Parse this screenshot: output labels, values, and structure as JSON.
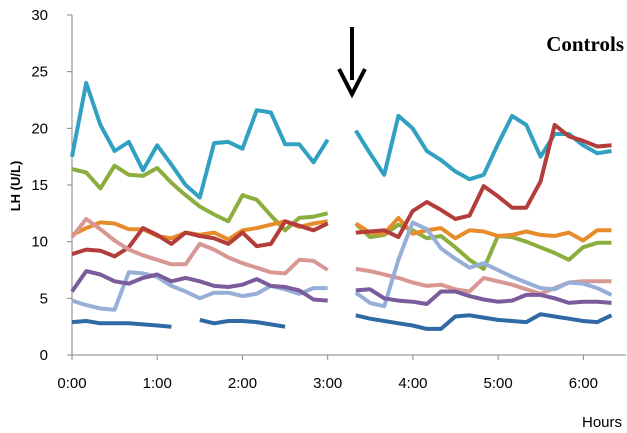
{
  "chart_data": {
    "type": "line",
    "xlabel": "Hours",
    "ylabel": "LH (U/L)",
    "annotation": "Controls",
    "marker_glyph": "down-arrow",
    "ylim": [
      0,
      30
    ],
    "yticks": [
      "0",
      "5",
      "10",
      "15",
      "20",
      "25",
      "30"
    ],
    "xlim": [
      0,
      6.5
    ],
    "xticks": [
      {
        "x": 0,
        "label": "0:00"
      },
      {
        "x": 1,
        "label": "1:00"
      },
      {
        "x": 2,
        "label": "2:00"
      },
      {
        "x": 3,
        "label": "3:00"
      },
      {
        "x": 4,
        "label": "4:00"
      },
      {
        "x": 5,
        "label": "5:00"
      },
      {
        "x": 6,
        "label": "6:00"
      }
    ],
    "arrow_at_x": 3.5,
    "grid": false,
    "series": [
      {
        "color": "#31a0c1",
        "segments": [
          {
            "x0": 0.0,
            "values": [
              17.5,
              24.0,
              20.3,
              18.0,
              18.8,
              16.3,
              18.5,
              16.8,
              15.0,
              13.9,
              18.7,
              18.8,
              18.2,
              21.6,
              21.4,
              18.6,
              18.6,
              17.0,
              19.0
            ]
          },
          {
            "x0": 3.33,
            "values": [
              19.8,
              17.8,
              15.9,
              21.1,
              20.0,
              18.0,
              17.2,
              16.2,
              15.5,
              15.9,
              18.6,
              21.1,
              20.3,
              17.5,
              19.5,
              19.5,
              18.5,
              17.8,
              18.0
            ]
          }
        ]
      },
      {
        "color": "#8cae3e",
        "segments": [
          {
            "x0": 0.0,
            "values": [
              16.4,
              16.1,
              14.7,
              16.7,
              15.9,
              15.8,
              16.5,
              15.2,
              14.1,
              13.1,
              12.4,
              11.8,
              14.1,
              13.7,
              12.3,
              11.0,
              12.1,
              12.2,
              12.5
            ]
          },
          {
            "x0": 3.33,
            "values": [
              11.6,
              10.4,
              10.6,
              11.5,
              11.0,
              10.3,
              10.5,
              9.5,
              8.4,
              7.6,
              10.5,
              10.4,
              10.0,
              9.5,
              9.0,
              8.4,
              9.5,
              9.9,
              9.9
            ]
          }
        ]
      },
      {
        "color": "#e78b2b",
        "segments": [
          {
            "x0": 0.0,
            "values": [
              10.6,
              11.2,
              11.7,
              11.6,
              11.1,
              11.1,
              10.5,
              10.3,
              10.8,
              10.6,
              10.8,
              10.2,
              11.0,
              11.2,
              11.5,
              11.8,
              11.3,
              11.6,
              11.8
            ]
          },
          {
            "x0": 3.33,
            "values": [
              11.6,
              10.8,
              10.7,
              12.1,
              10.7,
              11.0,
              11.2,
              10.3,
              11.0,
              10.9,
              10.5,
              10.6,
              10.9,
              10.6,
              10.5,
              10.8,
              10.1,
              11.0,
              11.0
            ]
          }
        ]
      },
      {
        "color": "#b23d3a",
        "segments": [
          {
            "x0": 0.0,
            "values": [
              8.9,
              9.3,
              9.2,
              8.7,
              9.5,
              11.2,
              10.6,
              9.8,
              10.8,
              10.5,
              10.3,
              9.8,
              10.8,
              9.6,
              9.8,
              11.8,
              11.4,
              11.0,
              11.6
            ]
          },
          {
            "x0": 3.33,
            "values": [
              10.8,
              10.9,
              11.0,
              10.4,
              12.7,
              13.5,
              12.8,
              12.0,
              12.3,
              14.9,
              14.0,
              13.0,
              13.0,
              15.3,
              20.3,
              19.3,
              18.9,
              18.4,
              18.5
            ]
          }
        ]
      },
      {
        "color": "#d99794",
        "segments": [
          {
            "x0": 0.0,
            "values": [
              10.4,
              12.0,
              11.1,
              10.1,
              9.3,
              8.8,
              8.4,
              8.0,
              8.0,
              9.8,
              9.3,
              8.6,
              8.1,
              7.7,
              7.3,
              7.2,
              8.4,
              8.3,
              7.5
            ]
          },
          {
            "x0": 3.33,
            "values": [
              7.6,
              7.4,
              7.1,
              6.8,
              6.4,
              6.1,
              6.2,
              5.8,
              5.6,
              6.8,
              6.5,
              6.2,
              5.8,
              5.4,
              5.9,
              6.4,
              6.5,
              6.5,
              6.5
            ]
          }
        ]
      },
      {
        "color": "#96aed8",
        "segments": [
          {
            "x0": 0.0,
            "values": [
              4.8,
              4.4,
              4.1,
              4.0,
              7.3,
              7.2,
              6.9,
              6.1,
              5.6,
              5.0,
              5.5,
              5.5,
              5.2,
              5.4,
              6.1,
              5.8,
              5.4,
              5.9,
              5.9
            ]
          },
          {
            "x0": 3.33,
            "values": [
              5.5,
              4.6,
              4.3,
              8.4,
              11.7,
              11.1,
              9.4,
              8.5,
              7.7,
              8.1,
              7.5,
              6.9,
              6.4,
              5.9,
              5.8,
              6.4,
              6.3,
              5.9,
              5.3
            ]
          }
        ]
      },
      {
        "color": "#7a5b9c",
        "segments": [
          {
            "x0": 0.0,
            "values": [
              5.6,
              7.4,
              7.1,
              6.5,
              6.3,
              6.8,
              7.1,
              6.5,
              6.8,
              6.5,
              6.1,
              6.0,
              6.2,
              6.7,
              6.1,
              6.0,
              5.7,
              4.9,
              4.8
            ]
          },
          {
            "x0": 3.33,
            "values": [
              5.7,
              5.8,
              5.0,
              4.8,
              4.7,
              4.5,
              5.6,
              5.6,
              5.2,
              4.9,
              4.7,
              4.8,
              5.3,
              5.3,
              5.0,
              4.6,
              4.7,
              4.7,
              4.6
            ]
          }
        ]
      },
      {
        "color": "#2f6aa4",
        "segments": [
          {
            "x0": 0.0,
            "values": [
              2.9,
              3.0,
              2.8,
              2.8,
              2.8,
              2.7,
              2.6,
              2.5
            ]
          },
          {
            "x0": 1.5,
            "values": [
              3.1,
              2.8,
              3.0,
              3.0,
              2.9,
              2.7,
              2.5
            ]
          },
          {
            "x0": 3.33,
            "values": [
              3.5,
              3.2,
              3.0,
              2.8,
              2.6,
              2.3,
              2.3,
              3.4,
              3.5,
              3.3,
              3.1,
              3.0,
              2.9,
              3.6,
              3.4,
              3.2,
              3.0,
              2.9,
              3.5
            ]
          }
        ]
      }
    ]
  }
}
